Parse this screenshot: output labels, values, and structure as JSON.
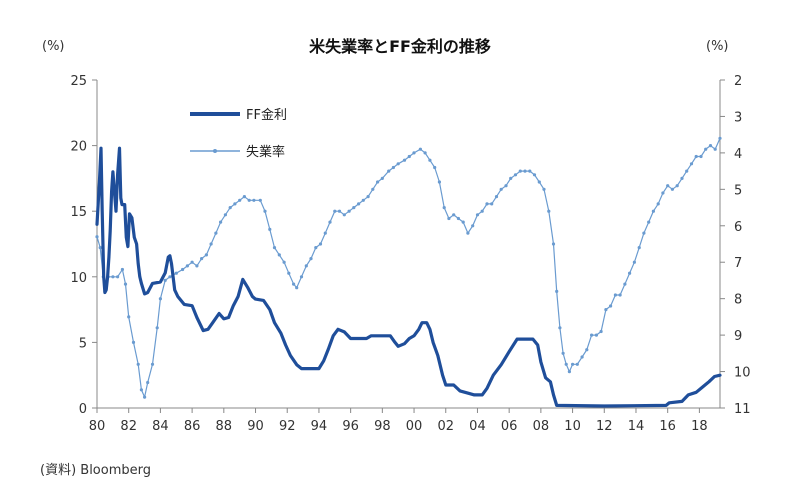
{
  "chart_data": {
    "type": "line",
    "title": "米失業率とFF金利の推移",
    "left_axis": {
      "unit": "(%)",
      "range": [
        0,
        25
      ],
      "ticks": [
        "0",
        "5",
        "10",
        "15",
        "20",
        "25"
      ]
    },
    "right_axis": {
      "unit": "(%)",
      "range": [
        11,
        2
      ],
      "inverted": true,
      "ticks": [
        "2",
        "3",
        "4",
        "5",
        "6",
        "7",
        "8",
        "9",
        "10",
        "11"
      ]
    },
    "x_axis": {
      "range": [
        1980,
        2019.3
      ],
      "ticks": [
        "80",
        "82",
        "84",
        "86",
        "88",
        "90",
        "92",
        "94",
        "96",
        "98",
        "00",
        "02",
        "04",
        "06",
        "08",
        "10",
        "12",
        "14",
        "16",
        "18"
      ]
    },
    "legend_placement": "top-left-inside",
    "source": "(資料) Bloomberg",
    "colors": {
      "ff_rate": "#1f4e9a",
      "unemployment": "#6a9bd0",
      "axis": "#888888"
    },
    "series": [
      {
        "name": "FF金利",
        "axis": "left",
        "points": [
          [
            1980.0,
            14.0
          ],
          [
            1980.15,
            17.2
          ],
          [
            1980.25,
            19.8
          ],
          [
            1980.33,
            15.0
          ],
          [
            1980.42,
            10.0
          ],
          [
            1980.5,
            8.8
          ],
          [
            1980.58,
            9.0
          ],
          [
            1980.67,
            10.0
          ],
          [
            1980.75,
            11.5
          ],
          [
            1980.83,
            13.5
          ],
          [
            1980.92,
            16.5
          ],
          [
            1981.0,
            18.0
          ],
          [
            1981.1,
            16.5
          ],
          [
            1981.2,
            15.0
          ],
          [
            1981.3,
            17.8
          ],
          [
            1981.42,
            19.8
          ],
          [
            1981.5,
            16.0
          ],
          [
            1981.58,
            15.5
          ],
          [
            1981.75,
            15.5
          ],
          [
            1981.85,
            13.0
          ],
          [
            1981.95,
            12.3
          ],
          [
            1982.05,
            14.8
          ],
          [
            1982.2,
            14.5
          ],
          [
            1982.35,
            13.0
          ],
          [
            1982.5,
            12.5
          ],
          [
            1982.6,
            11.0
          ],
          [
            1982.7,
            10.0
          ],
          [
            1982.8,
            9.5
          ],
          [
            1983.0,
            8.7
          ],
          [
            1983.2,
            8.8
          ],
          [
            1983.5,
            9.5
          ],
          [
            1984.0,
            9.6
          ],
          [
            1984.3,
            10.3
          ],
          [
            1984.5,
            11.5
          ],
          [
            1984.6,
            11.6
          ],
          [
            1984.7,
            11.0
          ],
          [
            1984.9,
            9.0
          ],
          [
            1985.1,
            8.5
          ],
          [
            1985.5,
            7.9
          ],
          [
            1986.0,
            7.8
          ],
          [
            1986.3,
            6.9
          ],
          [
            1986.7,
            5.9
          ],
          [
            1987.0,
            6.0
          ],
          [
            1987.3,
            6.5
          ],
          [
            1987.7,
            7.2
          ],
          [
            1988.0,
            6.8
          ],
          [
            1988.3,
            6.9
          ],
          [
            1988.6,
            7.8
          ],
          [
            1988.9,
            8.5
          ],
          [
            1989.2,
            9.8
          ],
          [
            1989.5,
            9.2
          ],
          [
            1989.8,
            8.5
          ],
          [
            1990.0,
            8.3
          ],
          [
            1990.5,
            8.2
          ],
          [
            1990.9,
            7.5
          ],
          [
            1991.2,
            6.5
          ],
          [
            1991.6,
            5.7
          ],
          [
            1991.9,
            4.8
          ],
          [
            1992.2,
            4.0
          ],
          [
            1992.6,
            3.3
          ],
          [
            1992.9,
            3.0
          ],
          [
            1993.5,
            3.0
          ],
          [
            1994.0,
            3.0
          ],
          [
            1994.3,
            3.6
          ],
          [
            1994.6,
            4.5
          ],
          [
            1994.9,
            5.5
          ],
          [
            1995.2,
            6.0
          ],
          [
            1995.6,
            5.8
          ],
          [
            1996.0,
            5.3
          ],
          [
            1996.5,
            5.3
          ],
          [
            1997.0,
            5.3
          ],
          [
            1997.3,
            5.5
          ],
          [
            1997.8,
            5.5
          ],
          [
            1998.5,
            5.5
          ],
          [
            1998.8,
            5.0
          ],
          [
            1999.0,
            4.7
          ],
          [
            1999.4,
            4.9
          ],
          [
            1999.7,
            5.3
          ],
          [
            2000.0,
            5.5
          ],
          [
            2000.3,
            6.0
          ],
          [
            2000.5,
            6.5
          ],
          [
            2000.8,
            6.5
          ],
          [
            2001.0,
            6.0
          ],
          [
            2001.2,
            5.0
          ],
          [
            2001.5,
            4.0
          ],
          [
            2001.8,
            2.5
          ],
          [
            2002.0,
            1.75
          ],
          [
            2002.5,
            1.75
          ],
          [
            2002.9,
            1.3
          ],
          [
            2003.5,
            1.1
          ],
          [
            2003.8,
            1.0
          ],
          [
            2004.3,
            1.0
          ],
          [
            2004.6,
            1.5
          ],
          [
            2005.0,
            2.5
          ],
          [
            2005.5,
            3.3
          ],
          [
            2006.0,
            4.3
          ],
          [
            2006.5,
            5.25
          ],
          [
            2007.0,
            5.25
          ],
          [
            2007.5,
            5.25
          ],
          [
            2007.8,
            4.8
          ],
          [
            2008.0,
            3.5
          ],
          [
            2008.3,
            2.3
          ],
          [
            2008.6,
            2.0
          ],
          [
            2008.8,
            1.0
          ],
          [
            2009.0,
            0.2
          ],
          [
            2012.0,
            0.15
          ],
          [
            2015.9,
            0.2
          ],
          [
            2016.1,
            0.4
          ],
          [
            2016.9,
            0.5
          ],
          [
            2017.3,
            1.0
          ],
          [
            2017.8,
            1.2
          ],
          [
            2018.2,
            1.6
          ],
          [
            2018.6,
            2.0
          ],
          [
            2018.95,
            2.4
          ],
          [
            2019.3,
            2.5
          ]
        ]
      },
      {
        "name": "失業率",
        "axis": "right",
        "points": [
          [
            1980.0,
            6.3
          ],
          [
            1980.2,
            6.6
          ],
          [
            1980.4,
            7.4
          ],
          [
            1980.5,
            7.8
          ],
          [
            1980.7,
            7.4
          ],
          [
            1981.0,
            7.4
          ],
          [
            1981.3,
            7.4
          ],
          [
            1981.6,
            7.2
          ],
          [
            1981.8,
            7.6
          ],
          [
            1982.0,
            8.5
          ],
          [
            1982.3,
            9.2
          ],
          [
            1982.6,
            9.8
          ],
          [
            1982.8,
            10.5
          ],
          [
            1983.0,
            10.7
          ],
          [
            1983.2,
            10.3
          ],
          [
            1983.5,
            9.8
          ],
          [
            1983.8,
            8.8
          ],
          [
            1984.0,
            8.0
          ],
          [
            1984.3,
            7.5
          ],
          [
            1984.6,
            7.4
          ],
          [
            1985.0,
            7.3
          ],
          [
            1985.4,
            7.2
          ],
          [
            1985.7,
            7.1
          ],
          [
            1986.0,
            7.0
          ],
          [
            1986.3,
            7.1
          ],
          [
            1986.6,
            6.9
          ],
          [
            1986.9,
            6.8
          ],
          [
            1987.2,
            6.5
          ],
          [
            1987.5,
            6.2
          ],
          [
            1987.8,
            5.9
          ],
          [
            1988.1,
            5.7
          ],
          [
            1988.4,
            5.5
          ],
          [
            1988.7,
            5.4
          ],
          [
            1989.0,
            5.3
          ],
          [
            1989.3,
            5.2
          ],
          [
            1989.6,
            5.3
          ],
          [
            1989.9,
            5.3
          ],
          [
            1990.3,
            5.3
          ],
          [
            1990.6,
            5.6
          ],
          [
            1990.9,
            6.1
          ],
          [
            1991.2,
            6.6
          ],
          [
            1991.5,
            6.8
          ],
          [
            1991.8,
            7.0
          ],
          [
            1992.1,
            7.3
          ],
          [
            1992.4,
            7.6
          ],
          [
            1992.6,
            7.7
          ],
          [
            1992.9,
            7.4
          ],
          [
            1993.2,
            7.1
          ],
          [
            1993.5,
            6.9
          ],
          [
            1993.8,
            6.6
          ],
          [
            1994.1,
            6.5
          ],
          [
            1994.4,
            6.2
          ],
          [
            1994.7,
            5.9
          ],
          [
            1995.0,
            5.6
          ],
          [
            1995.3,
            5.6
          ],
          [
            1995.6,
            5.7
          ],
          [
            1995.9,
            5.6
          ],
          [
            1996.2,
            5.5
          ],
          [
            1996.5,
            5.4
          ],
          [
            1996.8,
            5.3
          ],
          [
            1997.1,
            5.2
          ],
          [
            1997.4,
            5.0
          ],
          [
            1997.7,
            4.8
          ],
          [
            1998.0,
            4.7
          ],
          [
            1998.4,
            4.5
          ],
          [
            1998.7,
            4.4
          ],
          [
            1999.0,
            4.3
          ],
          [
            1999.4,
            4.2
          ],
          [
            1999.7,
            4.1
          ],
          [
            2000.0,
            4.0
          ],
          [
            2000.4,
            3.9
          ],
          [
            2000.7,
            4.0
          ],
          [
            2001.0,
            4.2
          ],
          [
            2001.3,
            4.4
          ],
          [
            2001.6,
            4.8
          ],
          [
            2001.9,
            5.5
          ],
          [
            2002.2,
            5.8
          ],
          [
            2002.5,
            5.7
          ],
          [
            2002.8,
            5.8
          ],
          [
            2003.1,
            5.9
          ],
          [
            2003.4,
            6.2
          ],
          [
            2003.7,
            6.0
          ],
          [
            2004.0,
            5.7
          ],
          [
            2004.3,
            5.6
          ],
          [
            2004.6,
            5.4
          ],
          [
            2004.9,
            5.4
          ],
          [
            2005.2,
            5.2
          ],
          [
            2005.5,
            5.0
          ],
          [
            2005.8,
            4.9
          ],
          [
            2006.1,
            4.7
          ],
          [
            2006.4,
            4.6
          ],
          [
            2006.7,
            4.5
          ],
          [
            2007.0,
            4.5
          ],
          [
            2007.3,
            4.5
          ],
          [
            2007.6,
            4.6
          ],
          [
            2007.9,
            4.8
          ],
          [
            2008.2,
            5.0
          ],
          [
            2008.5,
            5.6
          ],
          [
            2008.8,
            6.5
          ],
          [
            2009.0,
            7.8
          ],
          [
            2009.2,
            8.8
          ],
          [
            2009.4,
            9.5
          ],
          [
            2009.6,
            9.8
          ],
          [
            2009.8,
            10.0
          ],
          [
            2010.0,
            9.8
          ],
          [
            2010.3,
            9.8
          ],
          [
            2010.6,
            9.6
          ],
          [
            2010.9,
            9.4
          ],
          [
            2011.2,
            9.0
          ],
          [
            2011.5,
            9.0
          ],
          [
            2011.8,
            8.9
          ],
          [
            2012.1,
            8.3
          ],
          [
            2012.4,
            8.2
          ],
          [
            2012.7,
            7.9
          ],
          [
            2013.0,
            7.9
          ],
          [
            2013.3,
            7.6
          ],
          [
            2013.6,
            7.3
          ],
          [
            2013.9,
            7.0
          ],
          [
            2014.2,
            6.6
          ],
          [
            2014.5,
            6.2
          ],
          [
            2014.8,
            5.9
          ],
          [
            2015.1,
            5.6
          ],
          [
            2015.4,
            5.4
          ],
          [
            2015.7,
            5.1
          ],
          [
            2016.0,
            4.9
          ],
          [
            2016.3,
            5.0
          ],
          [
            2016.6,
            4.9
          ],
          [
            2016.9,
            4.7
          ],
          [
            2017.2,
            4.5
          ],
          [
            2017.5,
            4.3
          ],
          [
            2017.8,
            4.1
          ],
          [
            2018.1,
            4.1
          ],
          [
            2018.4,
            3.9
          ],
          [
            2018.7,
            3.8
          ],
          [
            2019.0,
            3.9
          ],
          [
            2019.3,
            3.6
          ]
        ]
      }
    ]
  }
}
